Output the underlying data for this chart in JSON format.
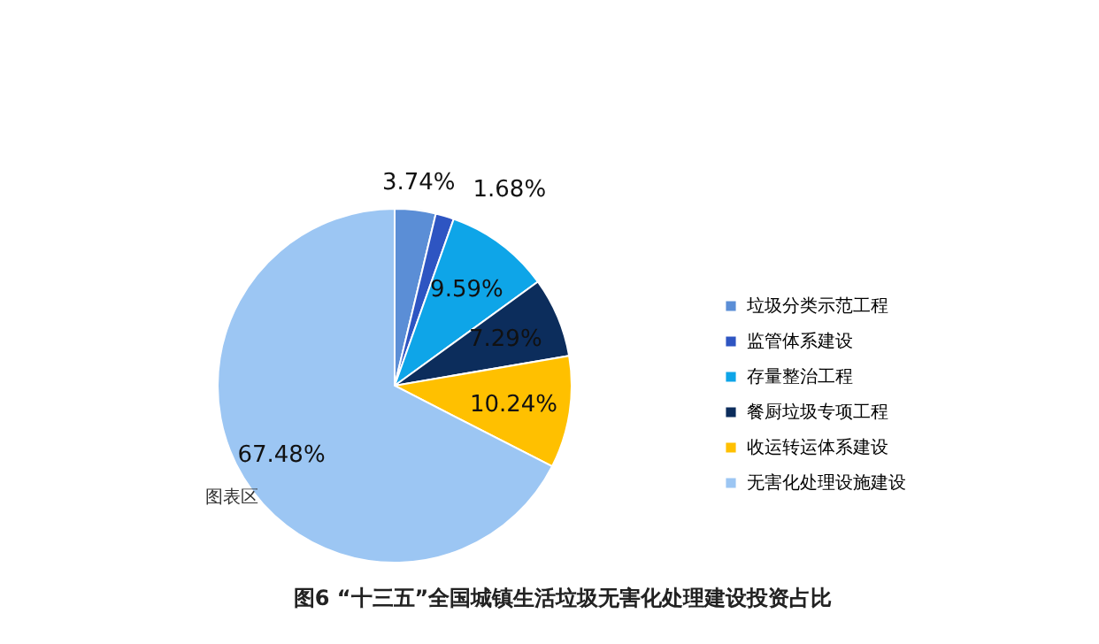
{
  "chart_data": {
    "type": "pie",
    "title": "图6 “十三五”全国城镇生活垃圾无害化处理建设投资占比",
    "categories": [
      "垃圾分类示范工程",
      "监管体系建设",
      "存量整治工程",
      "餐厨垃圾专项工程",
      "收运转运体系建设",
      "无害化处理设施建设"
    ],
    "values": [
      3.74,
      1.68,
      9.59,
      7.29,
      10.24,
      67.48
    ],
    "value_labels": [
      "3.74%",
      "1.68%",
      "9.59%",
      "7.29%",
      "10.24%",
      "67.48%"
    ],
    "colors": [
      "#5b8ed6",
      "#2e55c2",
      "#0ea5e8",
      "#0c2d5c",
      "#ffc000",
      "#9cc6f3"
    ],
    "legend": "right",
    "annotations": [
      "图表区"
    ]
  }
}
